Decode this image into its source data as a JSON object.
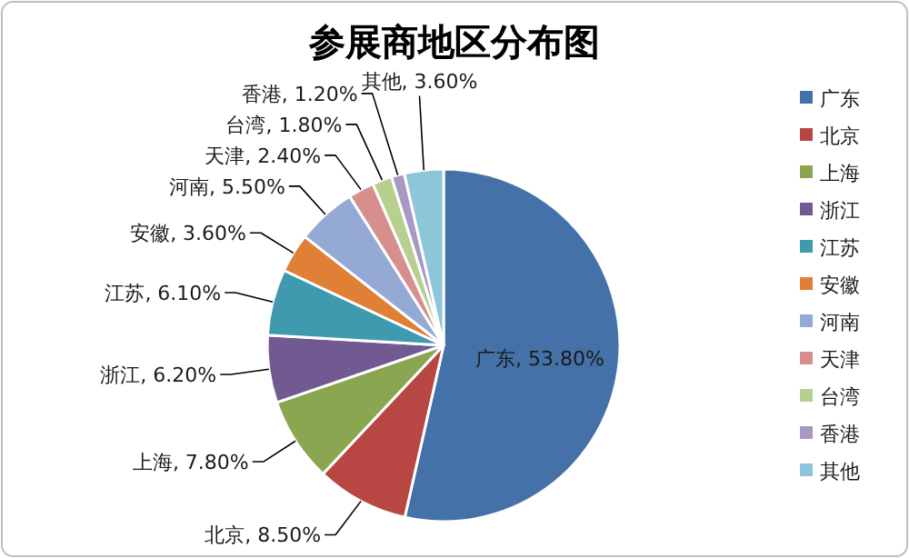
{
  "chart_data": {
    "type": "pie",
    "title": "参展商地区分布图",
    "categories": [
      "广东",
      "北京",
      "上海",
      "浙江",
      "江苏",
      "安徽",
      "河南",
      "天津",
      "台湾",
      "香港",
      "其他"
    ],
    "values": [
      53.8,
      8.5,
      7.8,
      6.2,
      6.1,
      3.6,
      5.5,
      2.4,
      1.8,
      1.2,
      3.6
    ],
    "value_labels": [
      "广东, 53.80%",
      "北京, 8.50%",
      "上海, 7.80%",
      "浙江, 6.20%",
      "江苏, 6.10%",
      "安徽, 3.60%",
      "河南, 5.50%",
      "天津, 2.40%",
      "台湾, 1.80%",
      "香港, 1.20%",
      "其他, 3.60%"
    ],
    "colors": [
      "#4472a8",
      "#b84744",
      "#8ba651",
      "#705a91",
      "#3f9ab0",
      "#e07f36",
      "#94a9d4",
      "#d78f8e",
      "#b7cf8f",
      "#a899c4",
      "#8cc6d8"
    ],
    "legend": "right"
  }
}
